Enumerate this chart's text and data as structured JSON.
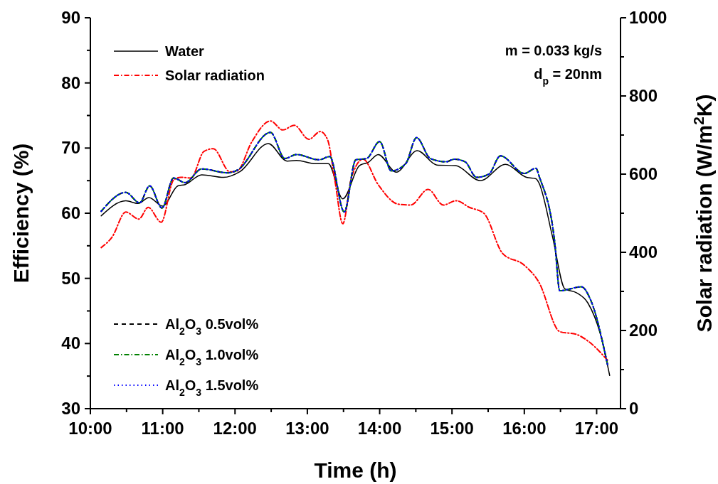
{
  "chart_data": {
    "type": "line",
    "xlabel": "Time (h)",
    "ylabel": "Efficiency (%)",
    "y2label": "Solar radiation (W/m$^{2}$K)",
    "annotations": [
      "m = 0.033 kg/s",
      "d$_{p}$ = 20nm"
    ],
    "xlim": [
      10,
      17.33
    ],
    "xticks": [
      {
        "value": 10,
        "label": "10:00"
      },
      {
        "value": 10.5,
        "label": null
      },
      {
        "value": 11,
        "label": "11:00"
      },
      {
        "value": 11.5,
        "label": null
      },
      {
        "value": 12,
        "label": "12:00"
      },
      {
        "value": 12.5,
        "label": null
      },
      {
        "value": 13,
        "label": "13:00"
      },
      {
        "value": 13.5,
        "label": null
      },
      {
        "value": 14,
        "label": "14:00"
      },
      {
        "value": 14.5,
        "label": null
      },
      {
        "value": 15,
        "label": "15:00"
      },
      {
        "value": 15.5,
        "label": null
      },
      {
        "value": 16,
        "label": "16:00"
      },
      {
        "value": 16.5,
        "label": null
      },
      {
        "value": 17,
        "label": "17:00"
      }
    ],
    "ylim": [
      30,
      90
    ],
    "yticks": [
      30,
      {
        "value": 35,
        "label": null
      },
      40,
      {
        "value": 45,
        "label": null
      },
      50,
      {
        "value": 55,
        "label": null
      },
      60,
      {
        "value": 65,
        "label": null
      },
      70,
      {
        "value": 75,
        "label": null
      },
      80,
      {
        "value": 85,
        "label": null
      },
      90
    ],
    "y2lim": [
      0,
      1000
    ],
    "y2ticks": [
      0,
      {
        "value": 100,
        "label": null
      },
      200,
      {
        "value": 300,
        "label": null
      },
      400,
      {
        "value": 500,
        "label": null
      },
      600,
      {
        "value": 700,
        "label": null
      },
      800,
      {
        "value": 900,
        "label": null
      },
      1000
    ],
    "grid": false,
    "legend": "left",
    "marker": "none",
    "series": [
      {
        "name": "Water",
        "color": "#000000",
        "line_style": "solid",
        "x": [
          10.15,
          10.49,
          10.66,
          10.81,
          11.0,
          11.21,
          11.31,
          11.54,
          11.84,
          12.07,
          12.46,
          12.72,
          12.85,
          13.11,
          13.29,
          13.49,
          13.72,
          13.84,
          13.98,
          14.23,
          14.52,
          14.79,
          15.05,
          15.39,
          15.74,
          16.03,
          16.16,
          16.2,
          16.39,
          16.56,
          16.72,
          16.88,
          17.05,
          17.18
        ],
        "values": [
          59.6,
          61.9,
          61.5,
          62.4,
          61.1,
          64.2,
          64.4,
          65.9,
          65.5,
          66.4,
          70.7,
          68.0,
          68.1,
          67.6,
          67.6,
          62.2,
          67.3,
          67.8,
          69.0,
          66.3,
          69.6,
          67.4,
          67.3,
          65.0,
          67.5,
          65.5,
          65.3,
          64.7,
          56.4,
          48.4,
          47.8,
          46.2,
          41.5,
          35.1
        ]
      },
      {
        "name": "Solar radiation",
        "color": "#ff0000",
        "line_style": "dashdot",
        "axis": "y2",
        "x": [
          10.15,
          10.3,
          10.49,
          10.67,
          10.8,
          10.98,
          11.15,
          11.25,
          11.39,
          11.57,
          11.7,
          11.93,
          12.03,
          12.23,
          12.49,
          12.66,
          12.82,
          13.02,
          13.18,
          13.28,
          13.38,
          13.49,
          13.61,
          13.77,
          13.98,
          14.26,
          14.43,
          14.67,
          14.88,
          15.06,
          15.24,
          15.44,
          15.7,
          16.0,
          16.2,
          16.49,
          16.72,
          16.88,
          17.15
        ],
        "values": [
          412,
          439,
          503,
          485,
          515,
          477,
          585,
          592,
          590,
          658,
          665,
          606,
          608,
          682,
          736,
          713,
          725,
          689,
          709,
          688,
          585,
          473,
          591,
          638,
          573,
          523,
          521,
          561,
          521,
          532,
          515,
          500,
          397,
          367,
          324,
          197,
          190,
          173,
          124
        ]
      },
      {
        "name": "Al$_{2}$O$_{3}$ 0.5vol%",
        "color": "#000000",
        "line_style": "dashed",
        "x": [
          10.15,
          10.49,
          10.68,
          10.82,
          10.99,
          11.15,
          11.31,
          11.54,
          11.9,
          12.03,
          12.49,
          12.69,
          12.85,
          13.16,
          13.31,
          13.51,
          13.67,
          13.82,
          14.0,
          14.16,
          14.36,
          14.51,
          14.7,
          14.92,
          15.03,
          15.18,
          15.34,
          15.51,
          15.67,
          16.0,
          16.16,
          16.21,
          16.42,
          16.49,
          16.79,
          16.92,
          17.15
        ],
        "values": [
          60.3,
          63.2,
          61.6,
          64.2,
          60.8,
          65.4,
          64.7,
          66.8,
          66.2,
          66.6,
          72.4,
          68.4,
          69.0,
          68.2,
          68.7,
          60.2,
          68.2,
          68.4,
          71.0,
          66.5,
          67.6,
          71.6,
          68.4,
          67.9,
          68.3,
          67.9,
          65.5,
          66.0,
          68.8,
          66.1,
          66.9,
          65.5,
          55.6,
          48.1,
          48.7,
          46.6,
          36.8
        ]
      },
      {
        "name": "Al$_{2}$O$_{3}$ 1.0vol%",
        "color": "#008000",
        "line_style": "dashdot",
        "x": [
          10.15,
          10.49,
          10.68,
          10.82,
          10.99,
          11.15,
          11.31,
          11.54,
          11.9,
          12.03,
          12.49,
          12.69,
          12.85,
          13.16,
          13.31,
          13.51,
          13.67,
          13.82,
          14.0,
          14.16,
          14.36,
          14.51,
          14.7,
          14.92,
          15.03,
          15.18,
          15.34,
          15.51,
          15.67,
          16.0,
          16.16,
          16.21,
          16.42,
          16.49,
          16.79,
          16.92,
          17.15
        ],
        "values": [
          60.3,
          63.2,
          61.6,
          64.2,
          60.8,
          65.4,
          64.7,
          66.8,
          66.2,
          66.6,
          72.4,
          68.4,
          69.0,
          68.2,
          68.7,
          60.2,
          68.2,
          68.4,
          71.0,
          66.5,
          67.6,
          71.6,
          68.4,
          67.9,
          68.3,
          67.9,
          65.5,
          66.0,
          68.8,
          66.1,
          66.9,
          65.5,
          55.6,
          48.1,
          48.7,
          46.6,
          36.8
        ]
      },
      {
        "name": "Al$_{2}$O$_{3}$ 1.5vol%",
        "color": "#0000ff",
        "line_style": "dotted",
        "x": [
          10.15,
          10.49,
          10.68,
          10.82,
          10.99,
          11.15,
          11.31,
          11.54,
          11.9,
          12.03,
          12.49,
          12.69,
          12.85,
          13.16,
          13.31,
          13.51,
          13.67,
          13.82,
          14.0,
          14.16,
          14.36,
          14.51,
          14.7,
          14.92,
          15.03,
          15.18,
          15.34,
          15.51,
          15.67,
          16.0,
          16.16,
          16.21,
          16.42,
          16.49,
          16.79,
          16.92,
          17.15
        ],
        "values": [
          60.3,
          63.2,
          61.6,
          64.2,
          60.8,
          65.4,
          64.7,
          66.8,
          66.2,
          66.6,
          72.4,
          68.4,
          69.0,
          68.2,
          68.7,
          60.2,
          68.2,
          68.4,
          71.0,
          66.5,
          67.6,
          71.6,
          68.4,
          67.9,
          68.3,
          67.9,
          65.5,
          66.0,
          68.8,
          66.1,
          66.9,
          65.5,
          55.6,
          48.1,
          48.7,
          46.6,
          36.8
        ]
      }
    ]
  }
}
